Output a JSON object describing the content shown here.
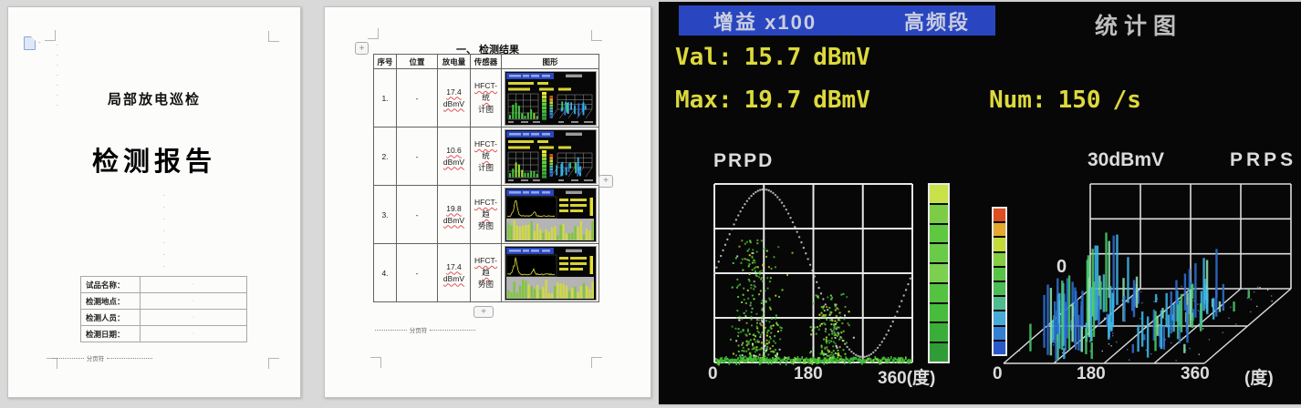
{
  "page1": {
    "subtitle": "局部放电巡检",
    "title": "检测报告",
    "info_table": {
      "rows": [
        {
          "label": "试品名称：",
          "value": ""
        },
        {
          "label": "检测地点：",
          "value": ""
        },
        {
          "label": "检测人员：",
          "value": ""
        },
        {
          "label": "检测日期：",
          "value": ""
        }
      ]
    },
    "page_break_label": "分页符"
  },
  "page2": {
    "section_title": "一、 检测结果",
    "table": {
      "headers": [
        "序号",
        "位置",
        "放电量",
        "传感器",
        "图形"
      ],
      "rows": [
        {
          "no": "1.",
          "location": "-",
          "discharge_value": "17.4",
          "discharge_unit": "dBmV",
          "sensor_line1": "HFCT-统",
          "sensor_line2": "计图",
          "thumb": "stats"
        },
        {
          "no": "2.",
          "location": "-",
          "discharge_value": "10.6",
          "discharge_unit": "dBmV",
          "sensor_line1": "HFCT-统",
          "sensor_line2": "计图",
          "thumb": "stats"
        },
        {
          "no": "3.",
          "location": "-",
          "discharge_value": "19.8",
          "discharge_unit": "dBmV",
          "sensor_line1": "HFCT-趋",
          "sensor_line2": "势图",
          "thumb": "trend"
        },
        {
          "no": "4.",
          "location": "-",
          "discharge_value": "17.4",
          "discharge_unit": "dBmV",
          "sensor_line1": "HFCT-趋",
          "sensor_line2": "势图",
          "thumb": "trend"
        }
      ]
    },
    "page_break_label": "分页符"
  },
  "instrument": {
    "header": {
      "gain": "增益 x100",
      "band": "高频段",
      "mode": "统计图"
    },
    "readings": {
      "val_label": "Val:",
      "val_value": "15.7",
      "val_unit": "dBmV",
      "max_label": "Max:",
      "max_value": "19.7",
      "max_unit": "dBmV",
      "num_label": "Num:",
      "num_value": "150",
      "num_unit": "/s"
    },
    "prpd": {
      "title": "PRPD",
      "x_ticks": [
        "0",
        "180",
        "360(度)"
      ],
      "colorbar": [
        "#c9e24a",
        "#7ccd45",
        "#5fc841",
        "#69cb47",
        "#7bd04f",
        "#54c440",
        "#47bc3d",
        "#3bae3a",
        "#2f9c38"
      ]
    },
    "prps": {
      "title": "PRPS",
      "scale_label": "30dBmV",
      "origin_label": "0",
      "x_ticks": [
        "0",
        "180",
        "360",
        "(度)"
      ],
      "colorbar": [
        "#dd4d1f",
        "#e2a92e",
        "#c4da38",
        "#85cd41",
        "#58c443",
        "#4bbd55",
        "#4fbc90",
        "#47abd8",
        "#3380d3",
        "#2959c9"
      ]
    },
    "colors": {
      "header_bg": "#2946c0",
      "accent_text": "#dcd93c",
      "label_text": "#dcdcdc"
    }
  },
  "thumbnails": {
    "stats": {
      "bar_greens": [
        "#46c83e",
        "#9ade38"
      ],
      "bars3d": [
        "#38b0e8",
        "#2d6fd2",
        "#4ac86a"
      ],
      "cbarA": [
        "#e8e832",
        "#c8e23c",
        "#8ed23f",
        "#63c83e",
        "#55c43e",
        "#49bc3c",
        "#3cab39",
        "#2f9a37"
      ],
      "cbarB": [
        "#dd4d1f",
        "#e2a92e",
        "#c4da38",
        "#85cd41",
        "#4fbc90",
        "#47abd8",
        "#3380d3",
        "#2959c9"
      ]
    },
    "trend": {
      "line_color": "#e8e23a",
      "band_bg": "#b4b4b4",
      "band_bar_colors": [
        "#d2dc38",
        "#7cc832"
      ]
    }
  },
  "chart_data": [
    {
      "type": "scatter",
      "title": "PRPD",
      "x_ticks": [
        "0",
        "180",
        "360(度)"
      ],
      "x_range_deg": [
        0,
        360
      ],
      "overlay": "dotted reference sine wave, one full cycle",
      "grid": "4x4 white grid on black",
      "dot_colors": [
        "#49c83e",
        "#8ade3a",
        "#d8e030",
        "#e8e8e8"
      ],
      "clusters": [
        {
          "phase_center_deg": 80,
          "phase_spread_deg": 42,
          "peak_amplitude_frac": 0.68,
          "points": 330
        },
        {
          "phase_center_deg": 212,
          "phase_spread_deg": 30,
          "peak_amplitude_frac": 0.38,
          "points": 190
        }
      ],
      "baseline_band": true
    },
    {
      "type": "3d-bar",
      "title": "PRPS",
      "scale_label": "30dBmV",
      "x_ticks": [
        "0",
        "180",
        "360",
        "(度)"
      ],
      "grid": "4x3 back wall + skewed floor",
      "bar_colors": [
        "#2d6fd2",
        "#3fb8e8",
        "#49c96a",
        "#8fe0b0"
      ],
      "clusters": [
        {
          "phase_center_frac": 0.22,
          "phase_spread_frac": 0.13,
          "rel_height": 0.95,
          "bars": 80
        },
        {
          "phase_center_frac": 0.68,
          "phase_spread_frac": 0.11,
          "rel_height": 0.68,
          "bars": 60
        }
      ]
    }
  ]
}
